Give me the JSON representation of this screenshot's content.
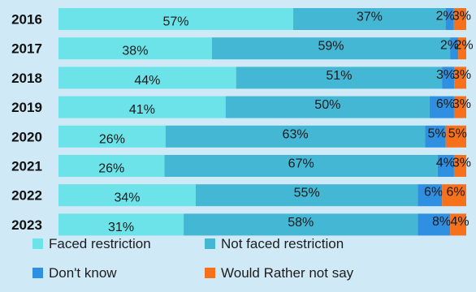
{
  "chart_data": {
    "type": "bar",
    "orientation": "horizontal",
    "stacked": true,
    "normalized": true,
    "categories": [
      "2016",
      "2017",
      "2018",
      "2019",
      "2020",
      "2021",
      "2022",
      "2023"
    ],
    "series": [
      {
        "name": "Faced restriction",
        "color": "#6be3e8",
        "values": [
          57,
          38,
          44,
          41,
          26,
          26,
          34,
          31
        ],
        "labels": [
          "57%",
          "38%",
          "44%",
          "41%",
          "26%",
          "26%",
          "34%",
          "31%"
        ]
      },
      {
        "name": "Not faced restriction",
        "color": "#44b7d5",
        "values": [
          37,
          59,
          51,
          50,
          63,
          67,
          55,
          58
        ],
        "labels": [
          "37%",
          "59%",
          "51%",
          "50%",
          "63%",
          "67%",
          "55%",
          "58%"
        ]
      },
      {
        "name": "Don't know",
        "color": "#2f8fe0",
        "values": [
          2,
          2,
          3,
          6,
          5,
          4,
          6,
          8
        ],
        "labels": [
          "2%",
          "2%",
          "3%",
          "6%",
          "5%",
          "4%",
          "6%",
          "8%"
        ]
      },
      {
        "name": "Would Rather not say",
        "color": "#f7711c",
        "values": [
          3,
          2,
          3,
          3,
          5,
          3,
          6,
          4
        ],
        "labels": [
          "3%",
          "2%",
          "3%",
          "3%",
          "5%",
          "3%",
          "6%",
          "4%"
        ]
      }
    ],
    "legend_position": "bottom",
    "grid": false
  }
}
